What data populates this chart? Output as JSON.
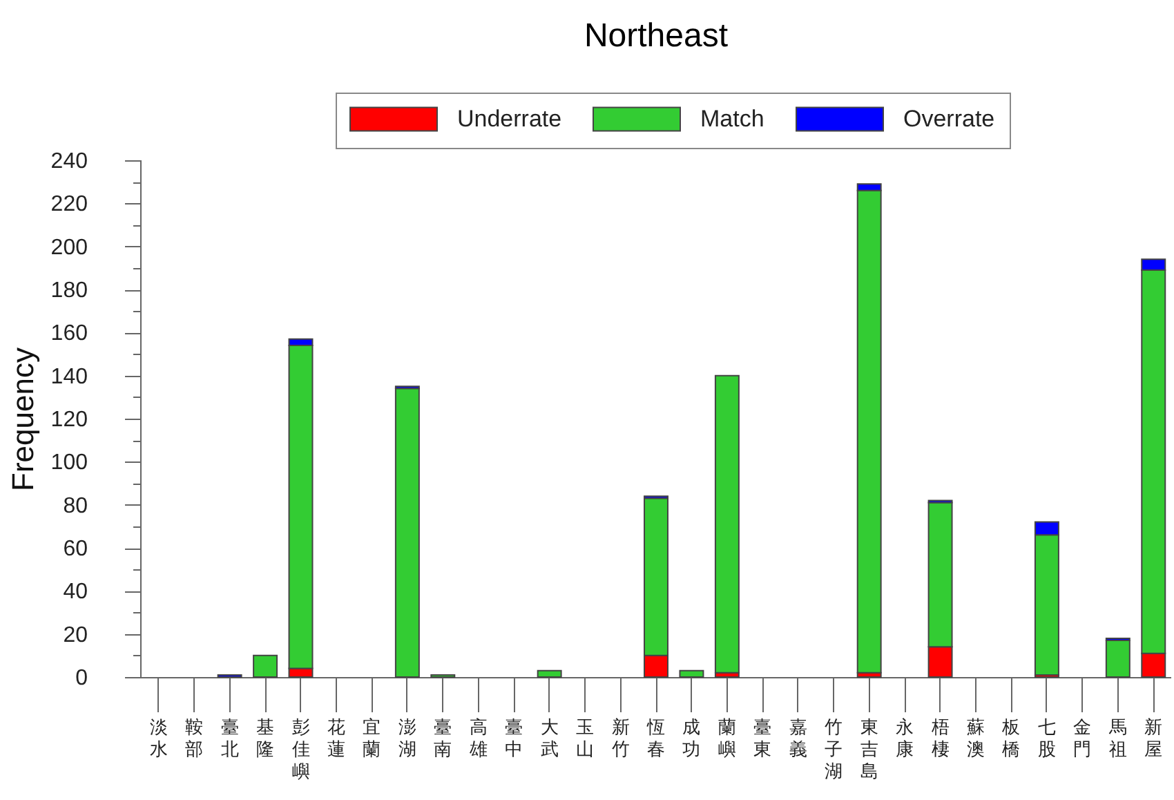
{
  "chart_data": {
    "type": "bar",
    "title": "Northeast",
    "ylabel": "Frequency",
    "stacked": true,
    "legend": "top",
    "categories": [
      "淡水",
      "鞍部",
      "臺北",
      "基隆",
      "彭佳嶼",
      "花蓮",
      "宜蘭",
      "澎湖",
      "臺南",
      "高雄",
      "臺中",
      "大武",
      "玉山",
      "新竹",
      "恆春",
      "成功",
      "蘭嶼",
      "臺東",
      "嘉義",
      "竹子湖",
      "東吉島",
      "永康",
      "梧棲",
      "蘇澳",
      "板橋",
      "七股",
      "金門",
      "馬祖",
      "新屋"
    ],
    "ylim": [
      0,
      240
    ],
    "yticks": [
      0,
      {
        "value": 10,
        "label": null
      },
      20,
      {
        "value": 30,
        "label": null
      },
      40,
      {
        "value": 50,
        "label": null
      },
      60,
      {
        "value": 70,
        "label": null
      },
      80,
      {
        "value": 90,
        "label": null
      },
      100,
      {
        "value": 110,
        "label": null
      },
      120,
      {
        "value": 130,
        "label": null
      },
      140,
      {
        "value": 150,
        "label": null
      },
      160,
      {
        "value": 170,
        "label": null
      },
      180,
      {
        "value": 190,
        "label": null
      },
      200,
      {
        "value": 210,
        "label": null
      },
      220,
      {
        "value": 230,
        "label": null
      },
      240
    ],
    "series": [
      {
        "name": "Underrate",
        "color": "#ff0000",
        "values": [
          0,
          0,
          0,
          0,
          4,
          0,
          0,
          0,
          0,
          0,
          0,
          0,
          0,
          0,
          10,
          0,
          2,
          0,
          0,
          0,
          2,
          0,
          14,
          0,
          0,
          1,
          0,
          0,
          11
        ]
      },
      {
        "name": "Match",
        "color": "#33cc33",
        "values": [
          0,
          0,
          0,
          10,
          150,
          0,
          0,
          134,
          1,
          0,
          0,
          3,
          0,
          0,
          73,
          3,
          138,
          0,
          0,
          0,
          224,
          0,
          67,
          0,
          0,
          65,
          0,
          17,
          178
        ]
      },
      {
        "name": "Overrate",
        "color": "#0000ff",
        "values": [
          0,
          0,
          1,
          0,
          3,
          0,
          0,
          1,
          0,
          0,
          0,
          0,
          0,
          0,
          1,
          0,
          0,
          0,
          0,
          0,
          3,
          0,
          1,
          0,
          0,
          6,
          0,
          1,
          5
        ]
      }
    ]
  }
}
